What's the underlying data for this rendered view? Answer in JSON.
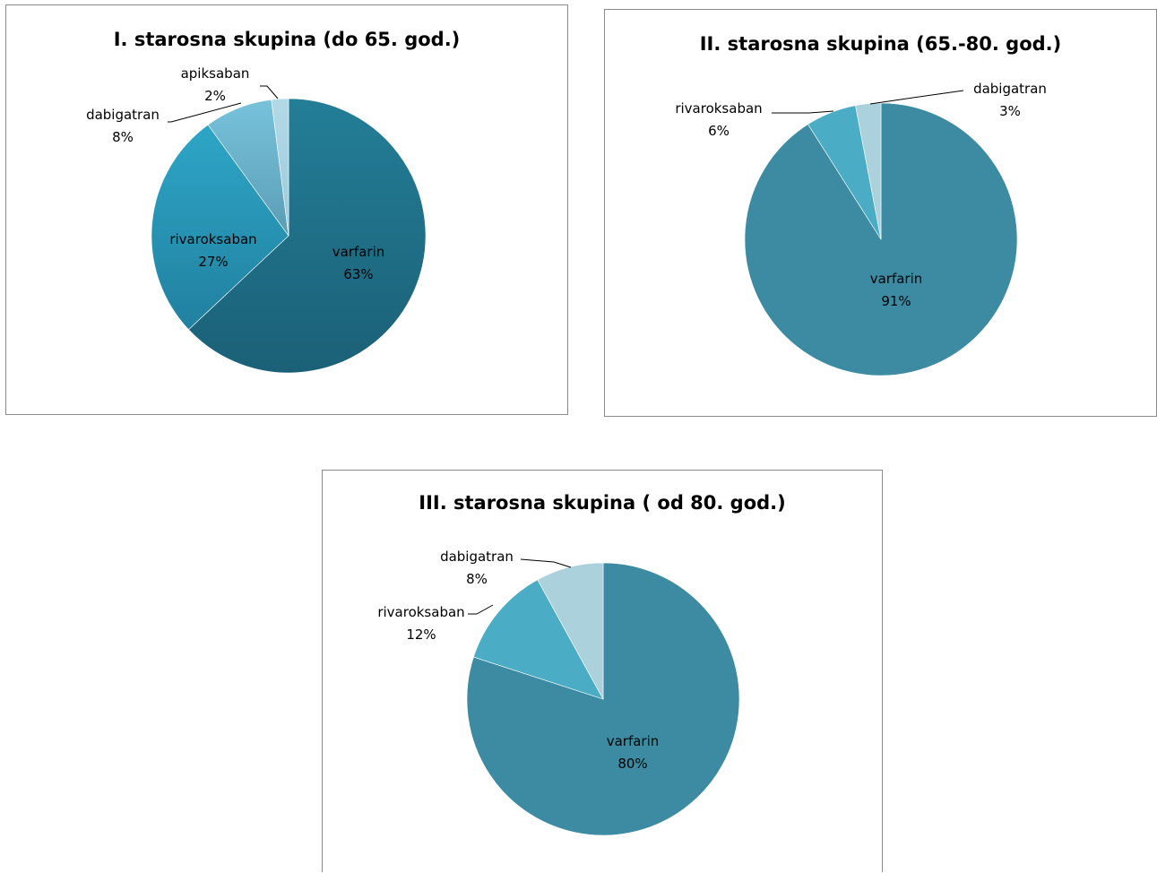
{
  "chart_data": [
    {
      "type": "pie",
      "title": "I. starosna skupina (do 65. god.)",
      "slices": [
        {
          "name": "varfarin",
          "value": 63,
          "label": "63%",
          "color": "#237e97",
          "color2": "#1b6077"
        },
        {
          "name": "rivaroksaban",
          "value": 27,
          "label": "27%",
          "color": "#2ea6c7",
          "color2": "#2180a0"
        },
        {
          "name": "dabigatran",
          "value": 8,
          "label": "8%",
          "color": "#78c2db",
          "color2": "#5a9db5"
        },
        {
          "name": "apiksaban",
          "value": 2,
          "label": "2%",
          "color": "#b3d9e6",
          "color2": "#9ccade"
        }
      ]
    },
    {
      "type": "pie",
      "title": "II. starosna skupina (65.-80. god.)",
      "slices": [
        {
          "name": "varfarin",
          "value": 91,
          "label": "91%",
          "color": "#3c8ba3"
        },
        {
          "name": "rivaroksaban",
          "value": 6,
          "label": "6%",
          "color": "#4bacc6"
        },
        {
          "name": "dabigatran",
          "value": 3,
          "label": "3%",
          "color": "#abd1dd"
        }
      ]
    },
    {
      "type": "pie",
      "title": "III. starosna skupina ( od 80. god.)",
      "slices": [
        {
          "name": "varfarin",
          "value": 80,
          "label": "80%",
          "color": "#3c8ba3"
        },
        {
          "name": "rivaroksaban",
          "value": 12,
          "label": "12%",
          "color": "#4bacc6"
        },
        {
          "name": "dabigatran",
          "value": 8,
          "label": "8%",
          "color": "#abd1dd"
        }
      ]
    }
  ]
}
